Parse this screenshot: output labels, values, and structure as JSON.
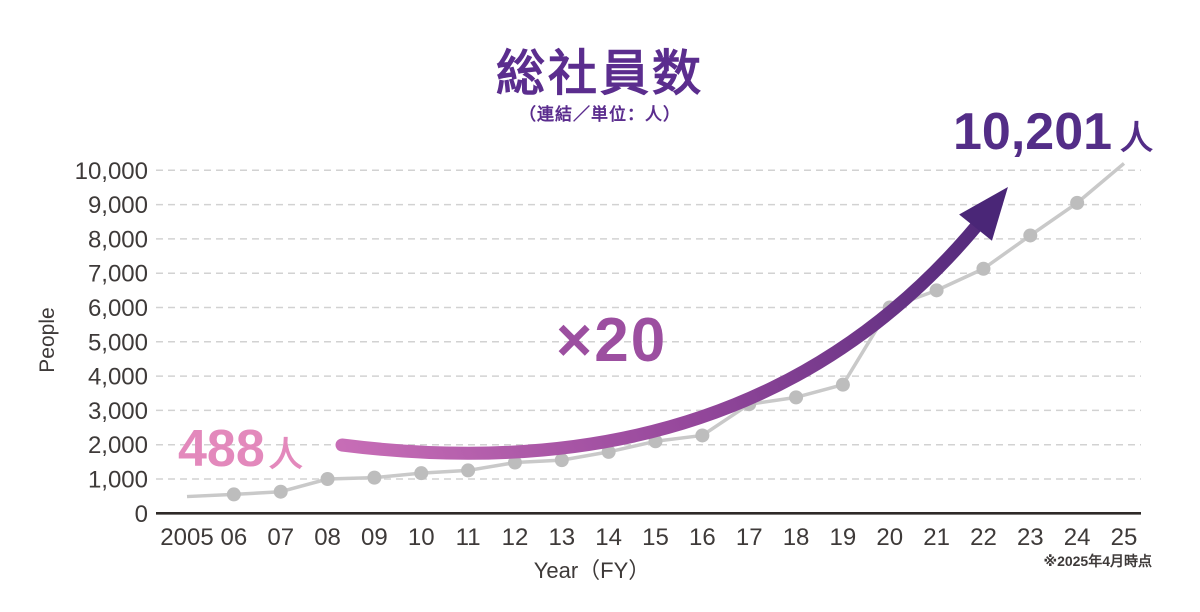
{
  "chart_data": {
    "type": "line",
    "title": "総社員数",
    "subtitle": "（連結／単位：人）",
    "ylabel": "People",
    "xlabel": "Year（FY）",
    "footnote": "※2025年4月時点",
    "categories": [
      "2005",
      "06",
      "07",
      "08",
      "09",
      "10",
      "11",
      "12",
      "13",
      "14",
      "15",
      "16",
      "17",
      "18",
      "19",
      "20",
      "21",
      "22",
      "23",
      "24",
      "25"
    ],
    "values": [
      488,
      550,
      630,
      1000,
      1040,
      1170,
      1250,
      1480,
      1550,
      1790,
      2100,
      2270,
      3180,
      3380,
      3750,
      6000,
      6500,
      7130,
      8100,
      9050,
      10201
    ],
    "ylim": [
      0,
      10000
    ],
    "y_tick_step": 1000,
    "grid": "horizontal-dashed",
    "legend": "none",
    "annotations": {
      "start": {
        "value": "488",
        "unit": "人"
      },
      "multiplier": "×20",
      "end": {
        "value": "10,201",
        "unit": "人"
      }
    },
    "colors": {
      "title": "#5b2d8e",
      "subtitle": "#5b2d8e",
      "start_label": "#e389bc",
      "multiplier": "#9c4fa0",
      "end_label": "#532d87",
      "series_line": "#c9c9c9",
      "marker": "#bdbdbd",
      "arrow_from": "#c76db6",
      "arrow_mid": "#96489c",
      "arrow_to": "#4a2677",
      "axis_text": "#3e3a39",
      "grid_line": "#d2d2d2",
      "baseline": "#2e2a28"
    }
  }
}
